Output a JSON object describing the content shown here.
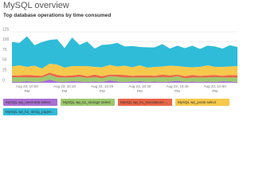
{
  "chart_data": {
    "type": "stacked-area",
    "title": "MySQL overview",
    "subtitle": "Top database operations by time consumed",
    "categories": [
      null,
      null,
      "Aug 23, 10:00 PM",
      null,
      null,
      null,
      null,
      "Aug 23, 10:10 PM",
      null,
      null,
      null,
      null,
      "Aug 23, 10:20 PM",
      null,
      null,
      null,
      null,
      "Aug 23, 10:30 PM",
      null,
      null,
      null,
      null,
      "Aug 23, 10:40 PM",
      null,
      null,
      null,
      null,
      "Aug 23, 10:50 PM",
      null,
      null,
      null
    ],
    "ylim": [
      0,
      125
    ],
    "yticks": [
      0,
      25,
      50,
      75,
      100,
      125
    ],
    "grid": true,
    "series": [
      {
        "name": "MySQL wp_usermeta select",
        "color": "#a96fd3",
        "values": [
          3,
          2,
          4,
          2,
          3,
          8,
          3,
          2,
          4,
          3,
          2,
          3,
          2,
          6,
          3,
          2,
          3,
          4,
          2,
          3,
          2,
          3,
          5,
          2,
          3,
          2,
          3,
          2,
          4,
          3,
          2
        ]
      },
      {
        "name": "MySQL wp_k1_storage select",
        "color": "#9dc86d",
        "values": [
          10,
          12,
          9,
          11,
          10,
          12,
          10,
          11,
          9,
          12,
          10,
          11,
          9,
          10,
          12,
          11,
          10,
          9,
          11,
          10,
          12,
          10,
          11,
          9,
          10,
          11,
          10,
          12,
          9,
          10,
          11
        ]
      },
      {
        "name": "MySQL wp_k1_translations select",
        "color": "#ea6547",
        "values": [
          5,
          4,
          6,
          5,
          4,
          5,
          6,
          4,
          5,
          5,
          4,
          6,
          5,
          4,
          5,
          6,
          4,
          5,
          5,
          4,
          6,
          5,
          4,
          5,
          6,
          4,
          5,
          5,
          4,
          6,
          5
        ]
      },
      {
        "name": "MySQL wp_posts select",
        "color": "#f6c94c",
        "values": [
          22,
          25,
          20,
          24,
          18,
          22,
          26,
          20,
          23,
          21,
          25,
          19,
          22,
          24,
          20,
          23,
          21,
          25,
          19,
          22,
          20,
          24,
          21,
          23,
          19,
          22,
          25,
          20,
          22,
          21,
          23
        ]
      },
      {
        "name": "MySQL wp_k1_string_pages select",
        "color": "#2fbcd9",
        "values": [
          60,
          55,
          75,
          50,
          65,
          58,
          62,
          48,
          70,
          52,
          60,
          45,
          55,
          50,
          58,
          47,
          52,
          45,
          50,
          48,
          55,
          42,
          50,
          46,
          53,
          44,
          48,
          50,
          45,
          52,
          47
        ]
      }
    ]
  }
}
